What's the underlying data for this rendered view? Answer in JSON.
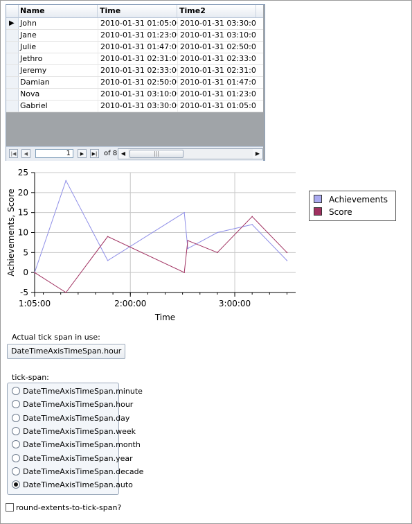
{
  "grid": {
    "columns": [
      "Name",
      "Time",
      "Time2"
    ],
    "rows": [
      {
        "name": "John",
        "time": "2010-01-31 01:05:00",
        "time2": "2010-01-31 03:30:00"
      },
      {
        "name": "Jane",
        "time": "2010-01-31 01:23:00",
        "time2": "2010-01-31 03:10:00"
      },
      {
        "name": "Julie",
        "time": "2010-01-31 01:47:00",
        "time2": "2010-01-31 02:50:00"
      },
      {
        "name": "Jethro",
        "time": "2010-01-31 02:31:00",
        "time2": "2010-01-31 02:33:00"
      },
      {
        "name": "Jeremy",
        "time": "2010-01-31 02:33:00",
        "time2": "2010-01-31 02:31:00"
      },
      {
        "name": "Damian",
        "time": "2010-01-31 02:50:00",
        "time2": "2010-01-31 01:47:00"
      },
      {
        "name": "Nova",
        "time": "2010-01-31 03:10:00",
        "time2": "2010-01-31 01:23:00"
      },
      {
        "name": "Gabriel",
        "time": "2010-01-31 03:30:00",
        "time2": "2010-01-31 01:05:00"
      }
    ],
    "nav": {
      "page": "1",
      "of_label": "of 8"
    }
  },
  "chart_data": {
    "type": "line",
    "xlabel": "Time",
    "ylabel": "Achievements, Score",
    "x_tick_labels": [
      "1:05:00",
      "2:00:00",
      "3:00:00"
    ],
    "y_tick_labels": [
      "25",
      "20",
      "15",
      "10",
      "5",
      "0",
      "-5"
    ],
    "xlim": [
      "01:05",
      "03:35"
    ],
    "ylim": [
      -5,
      25
    ],
    "grid": true,
    "legend_position": "right",
    "series": [
      {
        "name": "Achievements",
        "color": "#9090e8",
        "x": [
          "01:05",
          "01:23",
          "01:47",
          "02:31",
          "02:33",
          "02:50",
          "03:10",
          "03:30"
        ],
        "y": [
          0,
          23,
          3,
          15,
          6,
          10,
          12,
          3
        ]
      },
      {
        "name": "Score",
        "color": "#a03060",
        "x": [
          "01:05",
          "01:23",
          "01:47",
          "02:31",
          "02:33",
          "02:50",
          "03:10",
          "03:30"
        ],
        "y": [
          0,
          -5,
          9,
          0,
          8,
          5,
          14,
          5
        ]
      }
    ]
  },
  "controls": {
    "actual_label": "Actual tick span in use:",
    "actual_value": "DateTimeAxisTimeSpan.hour",
    "tickspan_label": "tick-span:",
    "options": [
      "DateTimeAxisTimeSpan.minute",
      "DateTimeAxisTimeSpan.hour",
      "DateTimeAxisTimeSpan.day",
      "DateTimeAxisTimeSpan.week",
      "DateTimeAxisTimeSpan.month",
      "DateTimeAxisTimeSpan.year",
      "DateTimeAxisTimeSpan.decade",
      "DateTimeAxisTimeSpan.auto"
    ],
    "selected": "DateTimeAxisTimeSpan.auto",
    "round_label": "round-extents-to-tick-span?"
  }
}
